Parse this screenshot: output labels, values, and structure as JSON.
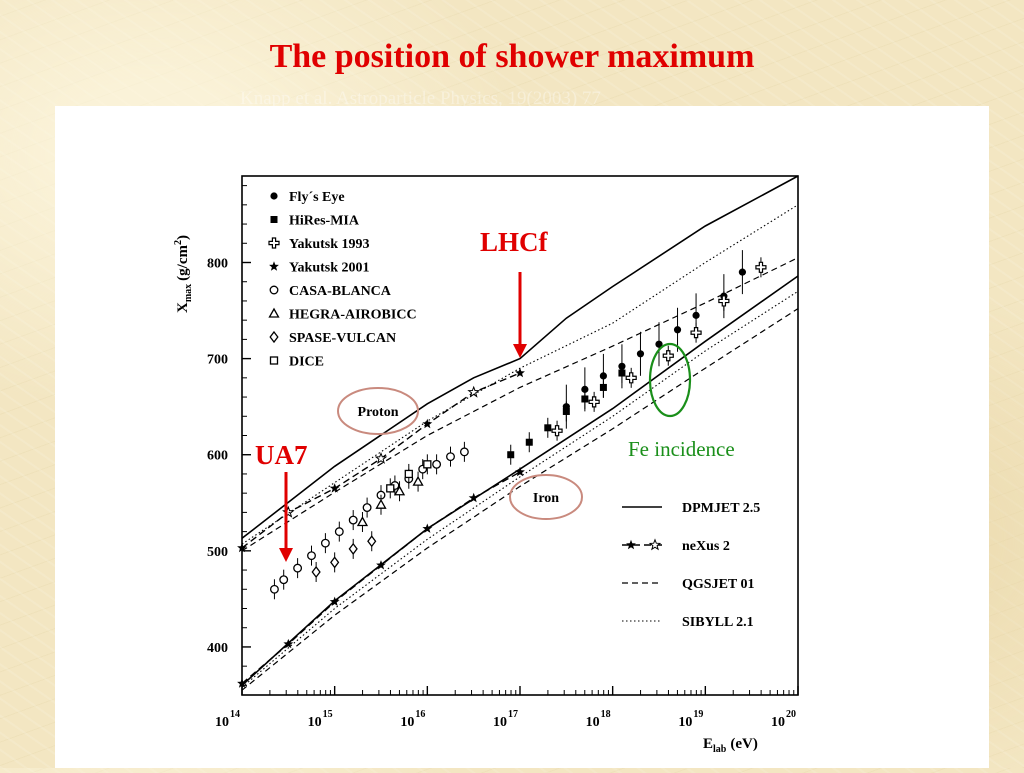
{
  "slide": {
    "title": "The position of shower maximum",
    "citation": "Knapp et al. Astroparticle Physics, 19(2003) 77"
  },
  "annotations": {
    "lhcf": "LHCf",
    "ua7": "UA7",
    "fe_incidence": "Fe incidence",
    "proton": "Proton",
    "iron": "Iron",
    "arrow_color": "#e00000",
    "circle_color": "#1a8f1a",
    "ellipse_color": "#c98a7e"
  },
  "chart_data": {
    "type": "line",
    "xlabel": "E",
    "xlabel_sub": "lab",
    "xlabel_unit": "(eV)",
    "ylabel": "X",
    "ylabel_sub": "max",
    "ylabel_unit": "(g/cm",
    "ylabel_sup": "2",
    "ylabel_close": ")",
    "x_scale": "log",
    "xlim": [
      14,
      20
    ],
    "ylim": [
      350,
      890
    ],
    "x_ticks": [
      {
        "exp": 14,
        "base": "10",
        "sup": "14"
      },
      {
        "exp": 15,
        "base": "10",
        "sup": "15"
      },
      {
        "exp": 16,
        "base": "10",
        "sup": "16"
      },
      {
        "exp": 17,
        "base": "10",
        "sup": "17"
      },
      {
        "exp": 18,
        "base": "10",
        "sup": "18"
      },
      {
        "exp": 19,
        "base": "10",
        "sup": "19"
      },
      {
        "exp": 20,
        "base": "10",
        "sup": "20"
      }
    ],
    "y_ticks": [
      400,
      500,
      600,
      700,
      800
    ],
    "legend_markers": [
      {
        "label": "Fly´s Eye",
        "marker": "filled-circle"
      },
      {
        "label": "HiRes-MIA",
        "marker": "filled-square"
      },
      {
        "label": "Yakutsk 1993",
        "marker": "open-cross"
      },
      {
        "label": "Yakutsk 2001",
        "marker": "filled-star"
      },
      {
        "label": "CASA-BLANCA",
        "marker": "open-circle"
      },
      {
        "label": "HEGRA-AIROBICC",
        "marker": "open-triangle"
      },
      {
        "label": "SPASE-VULCAN",
        "marker": "open-diamond"
      },
      {
        "label": "DICE",
        "marker": "open-square"
      }
    ],
    "legend_lines": [
      {
        "label": "DPMJET 2.5",
        "style": "solid"
      },
      {
        "label": "neXus 2",
        "style": "dash-star"
      },
      {
        "label": "QGSJET 01",
        "style": "dashed"
      },
      {
        "label": "SIBYLL 2.1",
        "style": "dotted"
      }
    ],
    "series": [
      {
        "model": "DPMJET 2.5",
        "primary": "Proton",
        "style": "solid",
        "x": [
          14,
          15,
          16,
          16.5,
          17,
          17.5,
          18,
          19,
          20
        ],
        "y": [
          513,
          588,
          653,
          680,
          700,
          742,
          775,
          838,
          895
        ]
      },
      {
        "model": "DPMJET 2.5",
        "primary": "Iron",
        "style": "solid",
        "x": [
          14,
          15,
          16,
          17,
          18,
          19,
          20
        ],
        "y": [
          360,
          448,
          523,
          585,
          648,
          718,
          786
        ]
      },
      {
        "model": "neXus 2",
        "primary": "Proton",
        "style": "dash-star",
        "x": [
          14,
          14.5,
          15,
          15.5,
          16,
          16.5,
          17
        ],
        "y": [
          503,
          540,
          565,
          596,
          632,
          665,
          685
        ]
      },
      {
        "model": "neXus 2",
        "primary": "Iron",
        "style": "dash-star",
        "x": [
          14,
          14.5,
          15,
          15.5,
          16,
          16.5,
          17
        ],
        "y": [
          362,
          403,
          447,
          485,
          523,
          555,
          582
        ]
      },
      {
        "model": "QGSJET 01",
        "primary": "Proton",
        "style": "dashed",
        "x": [
          14,
          15,
          16,
          17,
          18,
          19,
          20
        ],
        "y": [
          500,
          561,
          620,
          670,
          713,
          758,
          805
        ]
      },
      {
        "model": "QGSJET 01",
        "primary": "Iron",
        "style": "dashed",
        "x": [
          14,
          15,
          16,
          17,
          18,
          19,
          20
        ],
        "y": [
          355,
          433,
          503,
          567,
          627,
          690,
          752
        ]
      },
      {
        "model": "SIBYLL 2.1",
        "primary": "Proton",
        "style": "dotted",
        "x": [
          14,
          15,
          16,
          17,
          18,
          19,
          20
        ],
        "y": [
          507,
          571,
          635,
          690,
          737,
          800,
          860
        ]
      },
      {
        "model": "SIBYLL 2.1",
        "primary": "Iron",
        "style": "dotted",
        "x": [
          14,
          15,
          16,
          17,
          18,
          19,
          20
        ],
        "y": [
          358,
          440,
          512,
          577,
          640,
          708,
          770
        ]
      }
    ],
    "measurements": [
      {
        "set": "CASA-BLANCA",
        "marker": "open-circle",
        "x": [
          14.35,
          14.45,
          14.6,
          14.75,
          14.9,
          15.05,
          15.2,
          15.35,
          15.5,
          15.65,
          15.8,
          15.95,
          16.1,
          16.25,
          16.4
        ],
        "y": [
          460,
          470,
          482,
          495,
          508,
          520,
          532,
          545,
          558,
          568,
          575,
          585,
          590,
          598,
          603
        ]
      },
      {
        "set": "Fly´s Eye",
        "marker": "filled-circle",
        "x": [
          17.5,
          17.7,
          17.9,
          18.1,
          18.3,
          18.5,
          18.7,
          18.9,
          19.2,
          19.4
        ],
        "y": [
          650,
          668,
          682,
          692,
          705,
          715,
          730,
          745,
          765,
          790
        ]
      },
      {
        "set": "HiRes-MIA",
        "marker": "filled-square",
        "x": [
          16.9,
          17.1,
          17.3,
          17.5,
          17.7,
          17.9,
          18.1
        ],
        "y": [
          600,
          613,
          628,
          645,
          658,
          670,
          685
        ]
      },
      {
        "set": "Yakutsk 1993",
        "marker": "open-cross",
        "x": [
          17.4,
          17.8,
          18.2,
          18.6,
          18.9,
          19.2,
          19.6
        ],
        "y": [
          625,
          655,
          680,
          703,
          727,
          760,
          795
        ]
      },
      {
        "set": "HEGRA-AIROBICC",
        "marker": "open-triangle",
        "x": [
          15.3,
          15.5,
          15.7,
          15.9
        ],
        "y": [
          530,
          548,
          562,
          572
        ]
      },
      {
        "set": "SPASE-VULCAN",
        "marker": "open-diamond",
        "x": [
          14.8,
          15.0,
          15.2,
          15.4
        ],
        "y": [
          478,
          488,
          502,
          510
        ]
      },
      {
        "set": "DICE",
        "marker": "open-square",
        "x": [
          15.6,
          15.8,
          16.0
        ],
        "y": [
          565,
          580,
          590
        ]
      }
    ]
  }
}
